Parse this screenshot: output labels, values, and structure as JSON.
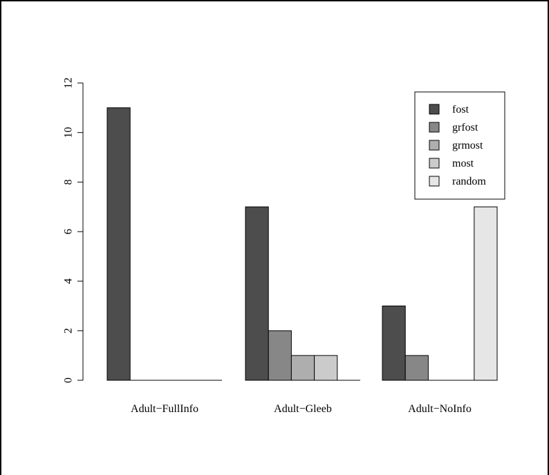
{
  "chart_data": {
    "type": "bar",
    "title": "",
    "xlabel": "",
    "ylabel": "",
    "categories": [
      "Adult−FullInfo",
      "Adult−Gleeb",
      "Adult−NoInfo"
    ],
    "series": [
      {
        "name": "fost",
        "color": "#4d4d4d",
        "values": [
          11,
          7,
          3
        ]
      },
      {
        "name": "grfost",
        "color": "#878787",
        "values": [
          0,
          2,
          1
        ]
      },
      {
        "name": "grmost",
        "color": "#aeaeae",
        "values": [
          0,
          1,
          0
        ]
      },
      {
        "name": "most",
        "color": "#cbcbcb",
        "values": [
          0,
          1,
          0
        ]
      },
      {
        "name": "random",
        "color": "#e6e6e6",
        "values": [
          0,
          0,
          7
        ]
      }
    ],
    "ylim": [
      0,
      12
    ],
    "yticks": [
      "0",
      "2",
      "4",
      "6",
      "8",
      "10",
      "12"
    ],
    "grid": false,
    "legend": {
      "position": "top-right"
    }
  }
}
